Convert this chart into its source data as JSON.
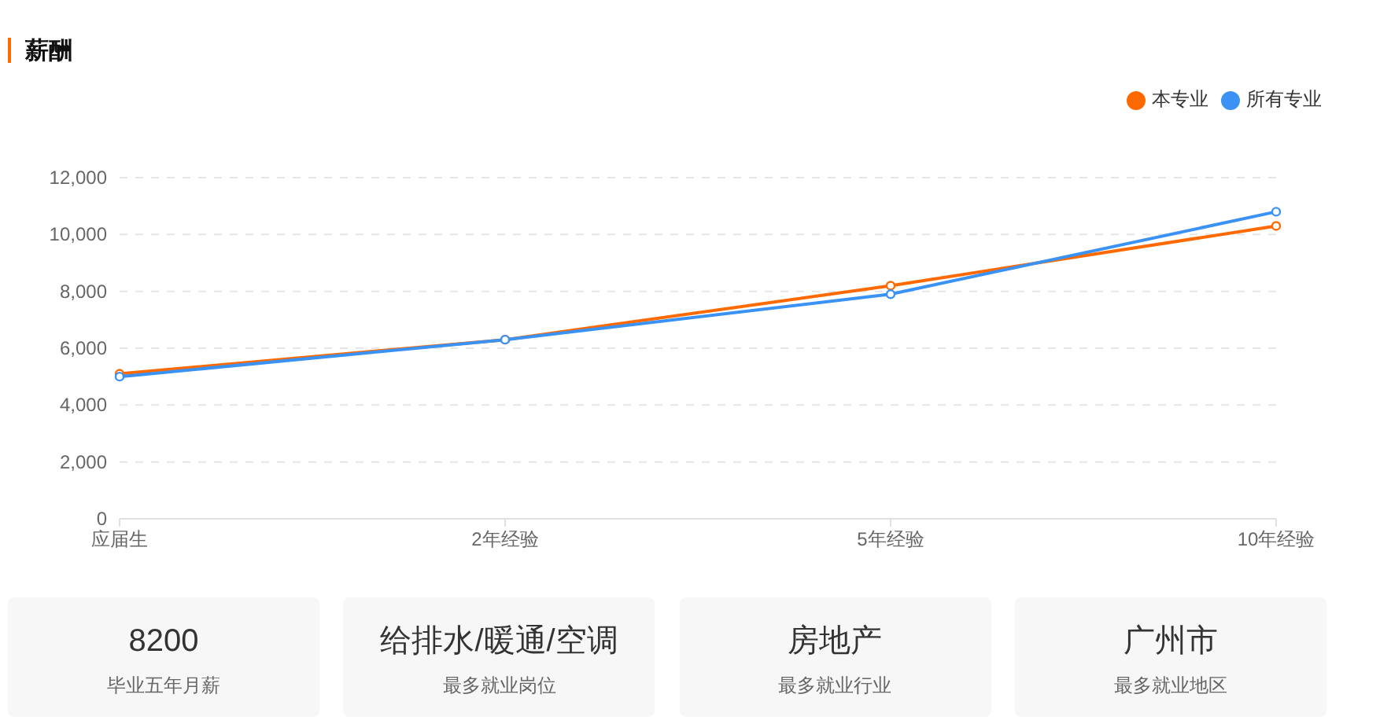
{
  "chart_data": [
    {
      "type": "line",
      "title": "薪酬",
      "categories": [
        "应届生",
        "2年经验",
        "5年经验",
        "10年经验"
      ],
      "series": [
        {
          "name": "本专业",
          "color": "#ff6a00",
          "values": [
            5100,
            6300,
            8200,
            10300
          ]
        },
        {
          "name": "所有专业",
          "color": "#3a92f5",
          "values": [
            5000,
            6300,
            7900,
            10800
          ]
        }
      ],
      "ylim": [
        0,
        12000
      ],
      "yticks": [
        0,
        {
          "value": 2000,
          "label": "2,000"
        },
        {
          "value": 4000,
          "label": "4,000"
        },
        {
          "value": 6000,
          "label": "6,000"
        },
        {
          "value": 8000,
          "label": "8,000"
        },
        {
          "value": 10000,
          "label": "10,000"
        },
        {
          "value": 12000,
          "label": "12,000"
        }
      ],
      "grid": "y",
      "legend": "top right",
      "marker": "circle",
      "line_style": "solid"
    },
    {
      "type": "other",
      "title": "8200",
      "subtitle": "毕业五年月薪"
    },
    {
      "type": "other",
      "title": "给排水/暖通/空调",
      "subtitle": "最多就业岗位"
    },
    {
      "type": "other",
      "title": "房地产",
      "subtitle": "最多就业行业"
    },
    {
      "type": "other",
      "title": "广州市",
      "subtitle": "最多就业地区"
    }
  ]
}
